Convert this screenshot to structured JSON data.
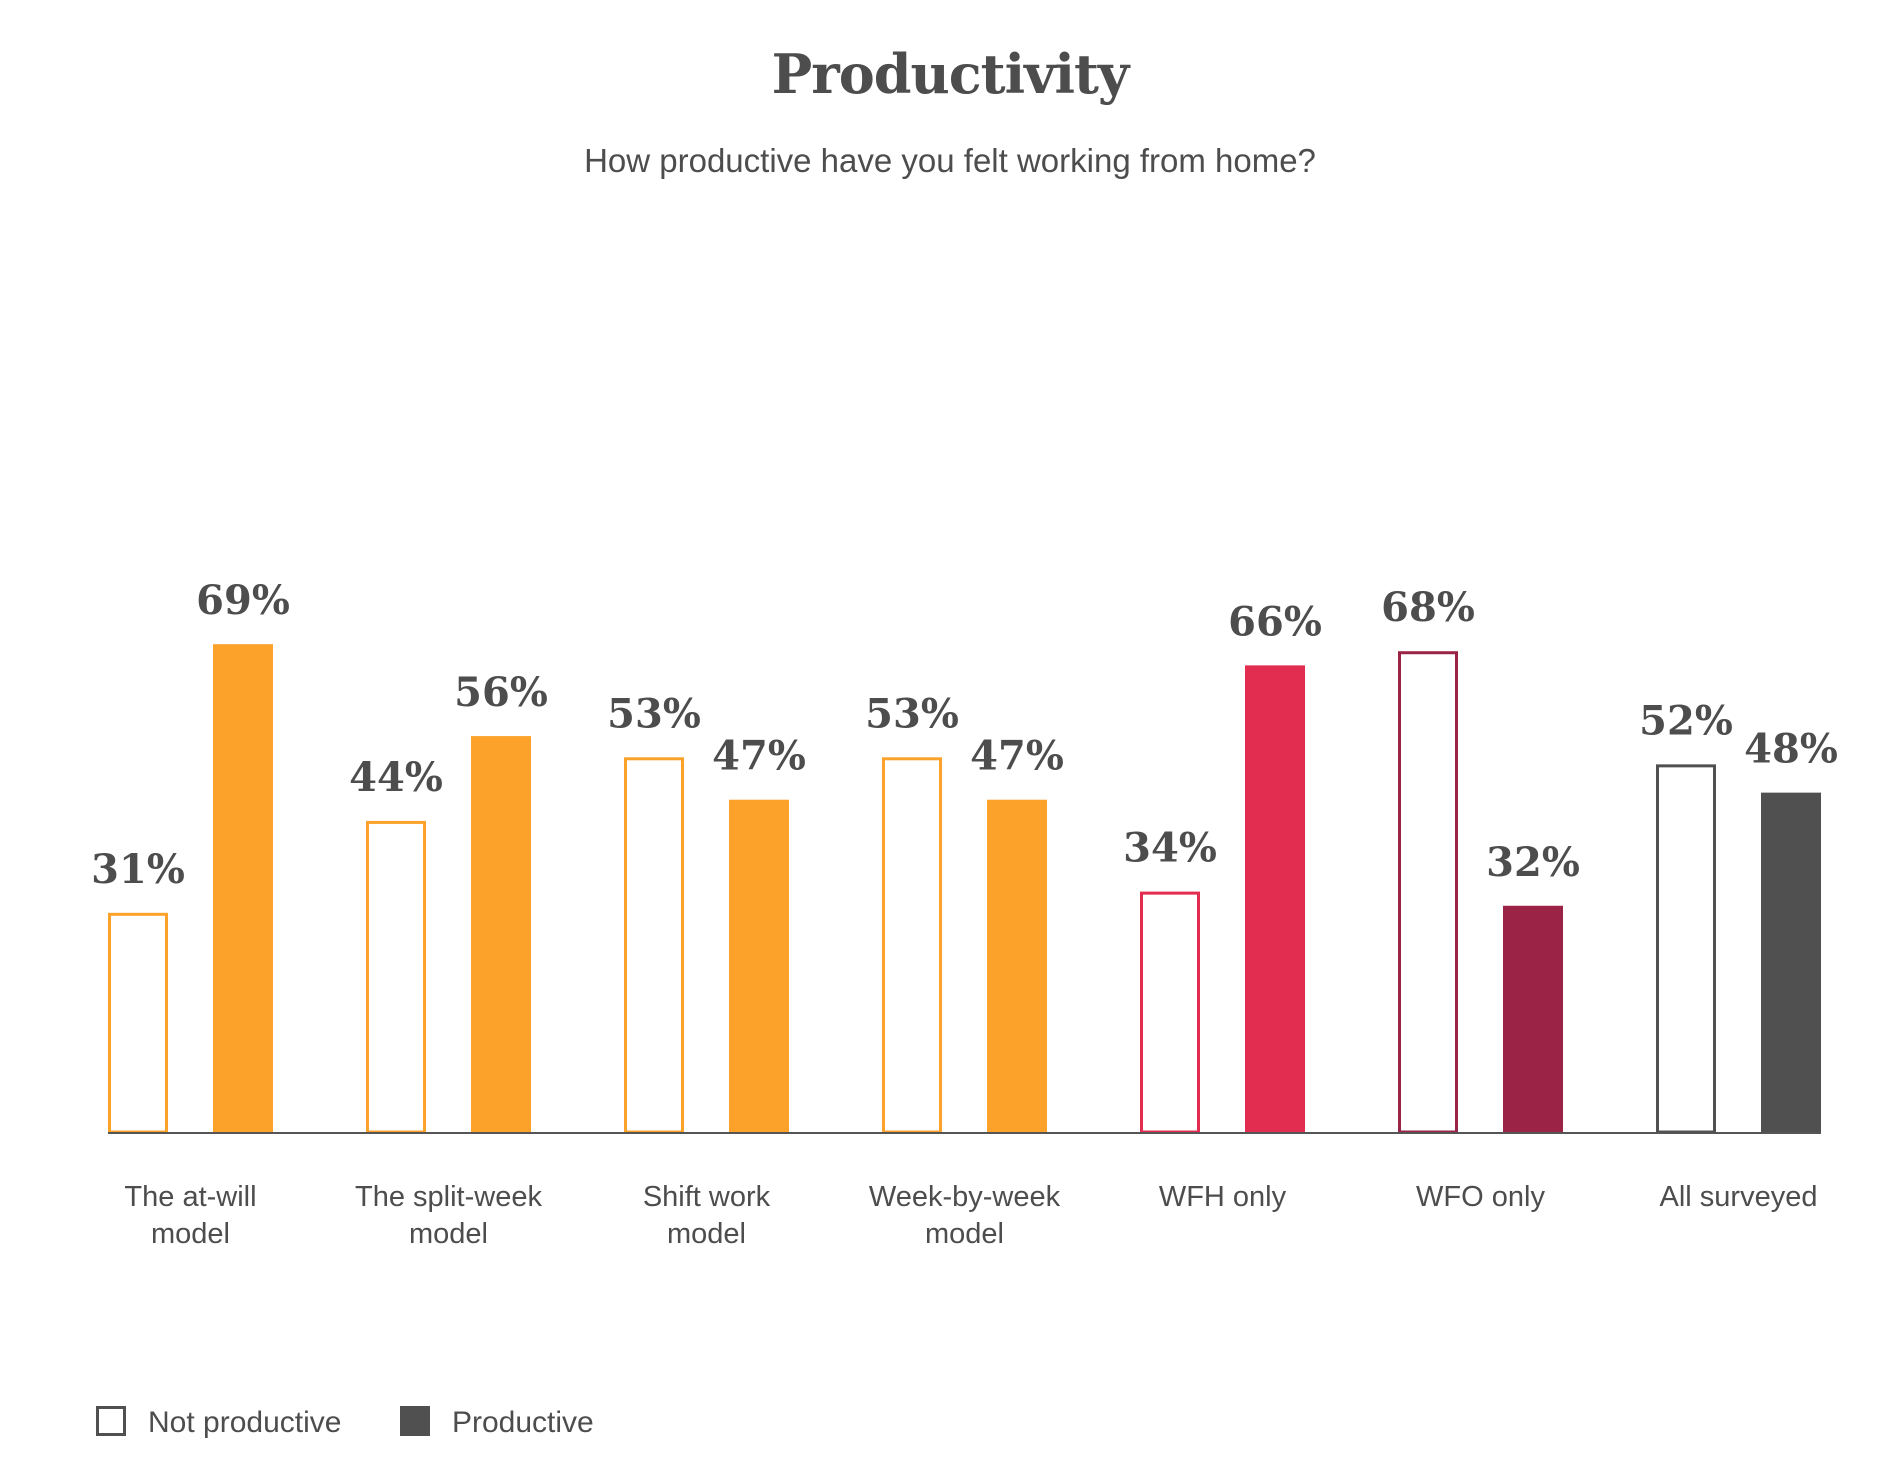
{
  "chart_data": {
    "type": "bar",
    "title": "Productivity",
    "subtitle": "How productive have you felt working from home?",
    "value_suffix": "%",
    "ylim": [
      0,
      100
    ],
    "grid": false,
    "legend_placement": "bottom-left",
    "categories": [
      {
        "label": "The at-will model",
        "lines": [
          "The at-will",
          "model"
        ],
        "color": "#fca22b",
        "values": [
          31,
          69
        ]
      },
      {
        "label": "The split-week model",
        "lines": [
          "The split-week",
          "model"
        ],
        "color": "#fca22b",
        "values": [
          44,
          56
        ]
      },
      {
        "label": "Shift work model",
        "lines": [
          "Shift work",
          "model"
        ],
        "color": "#fca22b",
        "values": [
          53,
          47
        ]
      },
      {
        "label": "Week-by-week model",
        "lines": [
          "Week-by-week",
          "model"
        ],
        "color": "#fca22b",
        "values": [
          53,
          47
        ]
      },
      {
        "label": "WFH only",
        "lines": [
          "WFH only"
        ],
        "color": "#e22c50",
        "values": [
          34,
          66
        ]
      },
      {
        "label": "WFO only",
        "lines": [
          "WFO only"
        ],
        "color": "#9b2345",
        "values": [
          68,
          32
        ]
      },
      {
        "label": "All surveyed",
        "lines": [
          "All surveyed"
        ],
        "color": "#505050",
        "values": [
          52,
          48
        ]
      }
    ],
    "series": [
      {
        "name": "Not productive",
        "style": "outline"
      },
      {
        "name": "Productive",
        "style": "filled"
      }
    ],
    "legend": [
      {
        "label": "Not productive",
        "style": "outline",
        "color": "#505050"
      },
      {
        "label": "Productive",
        "style": "filled",
        "color": "#505050"
      }
    ],
    "axis_color": "#555555"
  }
}
